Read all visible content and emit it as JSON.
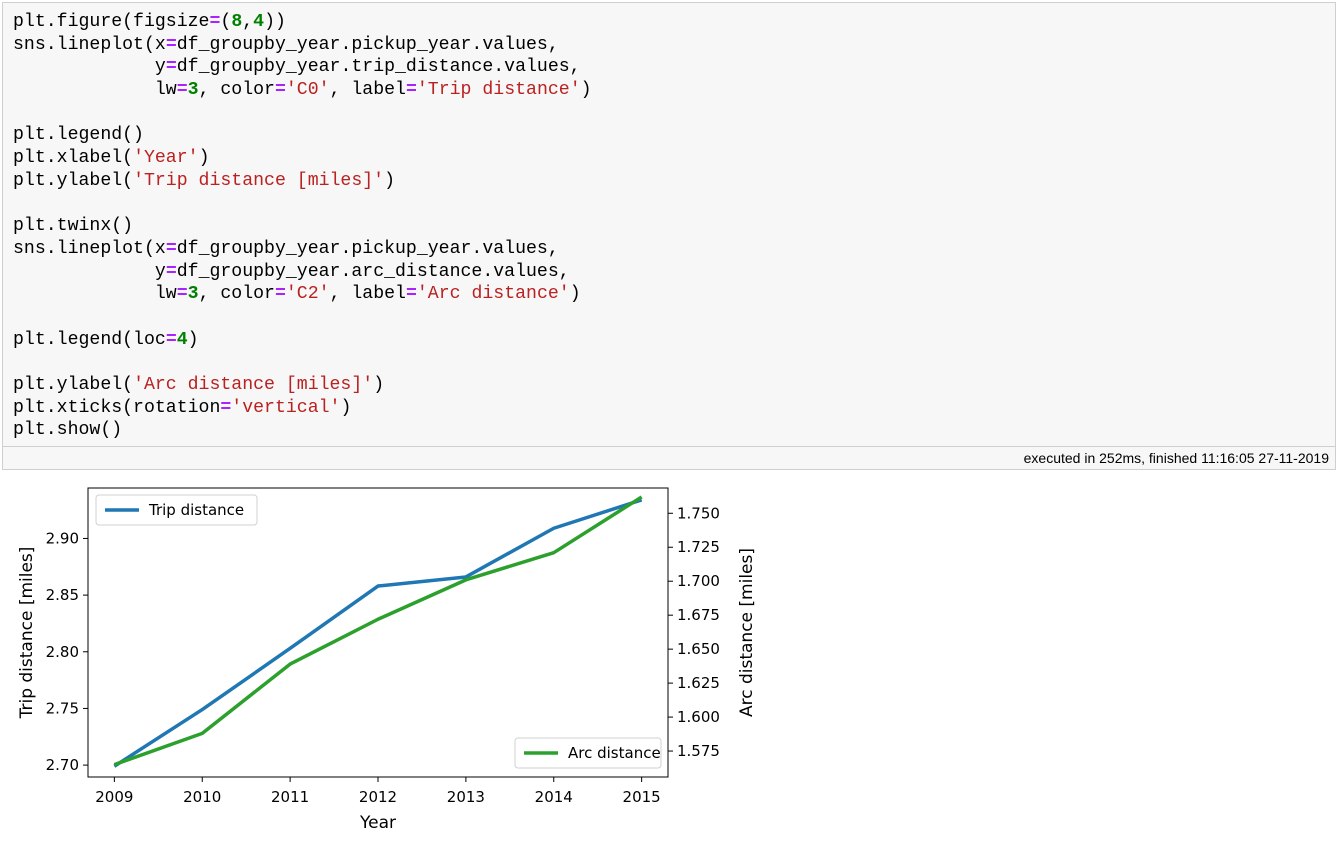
{
  "notebook": {
    "code_lines": [
      [
        [
          "plt.figure(figsize",
          ""
        ],
        [
          "=",
          "op"
        ],
        [
          "(",
          ""
        ],
        [
          "8",
          "num"
        ],
        [
          ",",
          ""
        ],
        [
          "4",
          "num"
        ],
        [
          "))",
          ""
        ]
      ],
      [
        [
          "sns.lineplot(x",
          ""
        ],
        [
          "=",
          "op"
        ],
        [
          "df_groupby_year.pickup_year.values,",
          ""
        ]
      ],
      [
        [
          "             y",
          ""
        ],
        [
          "=",
          "op"
        ],
        [
          "df_groupby_year.trip_distance.values,",
          ""
        ]
      ],
      [
        [
          "             lw",
          ""
        ],
        [
          "=",
          "op"
        ],
        [
          "3",
          "num"
        ],
        [
          ", color",
          ""
        ],
        [
          "=",
          "op"
        ],
        [
          "'C0'",
          "str"
        ],
        [
          ", label",
          ""
        ],
        [
          "=",
          "op"
        ],
        [
          "'Trip distance'",
          "str"
        ],
        [
          ")",
          ""
        ]
      ],
      [],
      [
        [
          "plt.legend()",
          ""
        ]
      ],
      [
        [
          "plt.xlabel(",
          ""
        ],
        [
          "'Year'",
          "str"
        ],
        [
          ")",
          ""
        ]
      ],
      [
        [
          "plt.ylabel(",
          ""
        ],
        [
          "'Trip distance [miles]'",
          "str"
        ],
        [
          ")",
          ""
        ]
      ],
      [],
      [
        [
          "plt.twinx()",
          ""
        ]
      ],
      [
        [
          "sns.lineplot(x",
          ""
        ],
        [
          "=",
          "op"
        ],
        [
          "df_groupby_year.pickup_year.values,",
          ""
        ]
      ],
      [
        [
          "             y",
          ""
        ],
        [
          "=",
          "op"
        ],
        [
          "df_groupby_year.arc_distance.values,",
          ""
        ]
      ],
      [
        [
          "             lw",
          ""
        ],
        [
          "=",
          "op"
        ],
        [
          "3",
          "num"
        ],
        [
          ", color",
          ""
        ],
        [
          "=",
          "op"
        ],
        [
          "'C2'",
          "str"
        ],
        [
          ", label",
          ""
        ],
        [
          "=",
          "op"
        ],
        [
          "'Arc distance'",
          "str"
        ],
        [
          ")",
          ""
        ]
      ],
      [],
      [
        [
          "plt.legend(loc",
          ""
        ],
        [
          "=",
          "op"
        ],
        [
          "4",
          "num"
        ],
        [
          ")",
          ""
        ]
      ],
      [],
      [
        [
          "plt.ylabel(",
          ""
        ],
        [
          "'Arc distance [miles]'",
          "str"
        ],
        [
          ")",
          ""
        ]
      ],
      [
        [
          "plt.xticks(rotation",
          ""
        ],
        [
          "=",
          "op"
        ],
        [
          "'vertical'",
          "str"
        ],
        [
          ")",
          ""
        ]
      ],
      [
        [
          "plt.show()",
          ""
        ]
      ]
    ],
    "execution_info": "executed in 252ms, finished 11:16:05 27-11-2019"
  },
  "chart_data": {
    "type": "line",
    "x": [
      2009,
      2010,
      2011,
      2012,
      2013,
      2014,
      2015
    ],
    "xticks": [
      "2009",
      "2010",
      "2011",
      "2012",
      "2013",
      "2014",
      "2015"
    ],
    "xlabel": "Year",
    "xlim": [
      2008.7,
      2015.3
    ],
    "left_axis": {
      "label": "Trip distance [miles]",
      "ylim": [
        2.6895,
        2.9445
      ],
      "ticks": [
        2.7,
        2.75,
        2.8,
        2.85,
        2.9
      ],
      "tick_labels": [
        "2.70",
        "2.75",
        "2.80",
        "2.85",
        "2.90"
      ]
    },
    "right_axis": {
      "label": "Arc distance [miles]",
      "ylim": [
        1.5559,
        1.7686
      ],
      "ticks": [
        1.575,
        1.6,
        1.625,
        1.65,
        1.675,
        1.7,
        1.725,
        1.75
      ],
      "tick_labels": [
        "1.575",
        "1.600",
        "1.625",
        "1.650",
        "1.675",
        "1.700",
        "1.725",
        "1.750"
      ]
    },
    "series": [
      {
        "name": "Trip distance",
        "axis": "left",
        "color": "#1f77b4",
        "values": [
          2.699,
          2.749,
          2.803,
          2.858,
          2.866,
          2.909,
          2.934
        ]
      },
      {
        "name": "Arc distance",
        "axis": "right",
        "color": "#2ca02c",
        "values": [
          1.565,
          1.588,
          1.639,
          1.672,
          1.701,
          1.721,
          1.762
        ]
      }
    ],
    "legend_left": {
      "placement": "upper left",
      "label": "Trip distance"
    },
    "legend_right": {
      "placement": "lower right",
      "label": "Arc distance"
    },
    "grid": false
  }
}
